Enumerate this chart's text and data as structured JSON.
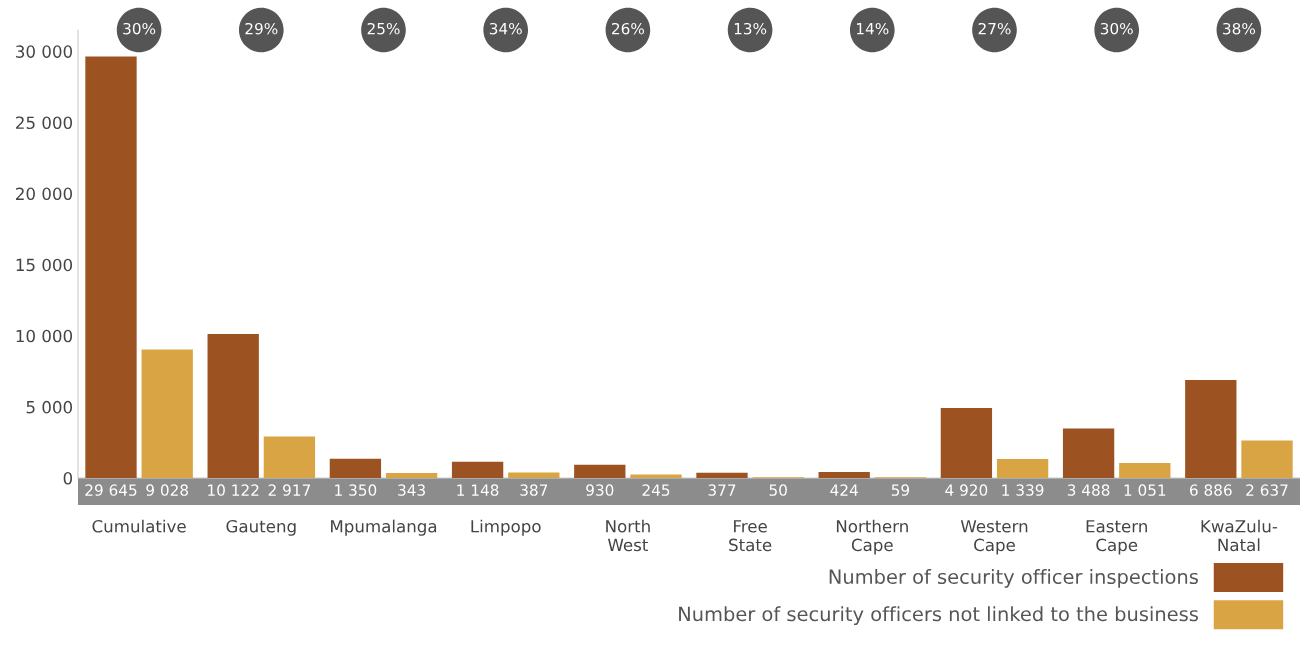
{
  "chart_data": {
    "type": "bar",
    "categories": [
      "Cumulative",
      "Gauteng",
      "Mpumalanga",
      "Limpopo",
      "North West",
      "Free State",
      "Northern Cape",
      "Western Cape",
      "Eastern Cape",
      "KwaZulu-Natal"
    ],
    "series": [
      {
        "name": "Number of security officer inspections",
        "color": "#9c5221",
        "values": [
          29645,
          10122,
          1350,
          1148,
          930,
          377,
          424,
          4920,
          3488,
          6886
        ]
      },
      {
        "name": "Number of security officers not linked to the business",
        "color": "#d9a444",
        "values": [
          9028,
          2917,
          343,
          387,
          245,
          50,
          59,
          1339,
          1051,
          2637
        ]
      }
    ],
    "ylim": [
      0,
      31500
    ],
    "yticks": [
      0,
      {
        "value": 5000,
        "label": "5 000"
      },
      {
        "value": 10000,
        "label": "10 000"
      },
      {
        "value": 15000,
        "label": "15 000"
      },
      {
        "value": 20000,
        "label": "20 000"
      },
      {
        "value": 25000,
        "label": "25 000"
      },
      {
        "value": 30000,
        "label": "30 000"
      }
    ],
    "value_labels": [
      [
        "29 645",
        "10 122",
        "1 350",
        "1 148",
        "930",
        "377",
        "424",
        "4 920",
        "3 488",
        "6 886"
      ],
      [
        "9 028",
        "2 917",
        "343",
        "387",
        "245",
        "50",
        "59",
        "1 339",
        "1 051",
        "2 637"
      ]
    ],
    "annotations": [
      "30%",
      "29%",
      "25%",
      "34%",
      "26%",
      "13%",
      "14%",
      "27%",
      "30%",
      "38%"
    ],
    "grid": false,
    "legend": "bottom"
  }
}
